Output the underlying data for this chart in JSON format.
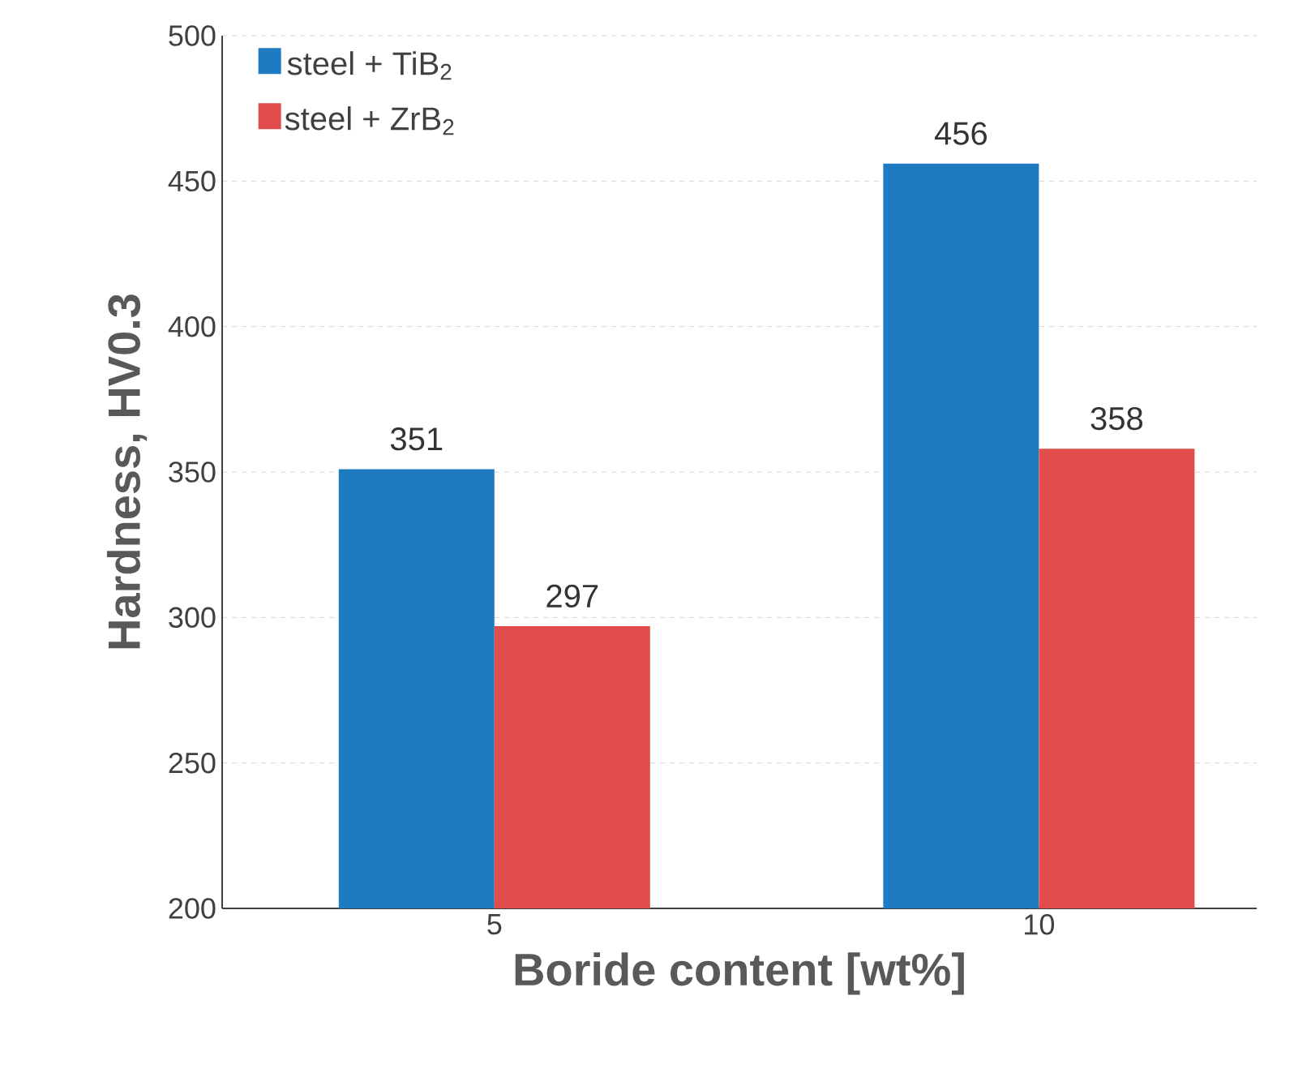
{
  "chart_data": {
    "type": "bar",
    "xlabel": "Boride content [wt%]",
    "ylabel": "Hardness, HV0.3",
    "categories": [
      "5",
      "10"
    ],
    "series": [
      {
        "name": "steel + TiB$_{2}$",
        "color": "#1f7bc1",
        "values": [
          351,
          456
        ]
      },
      {
        "name": "steel + ZrB$_{2}$",
        "color": "#e04d4a",
        "values": [
          297,
          358
        ]
      }
    ],
    "ylim": [
      200,
      500
    ],
    "yticks": [
      200,
      250,
      300,
      350,
      400,
      450,
      500
    ],
    "grid": "y",
    "legend": "top left",
    "data_labels": true
  }
}
